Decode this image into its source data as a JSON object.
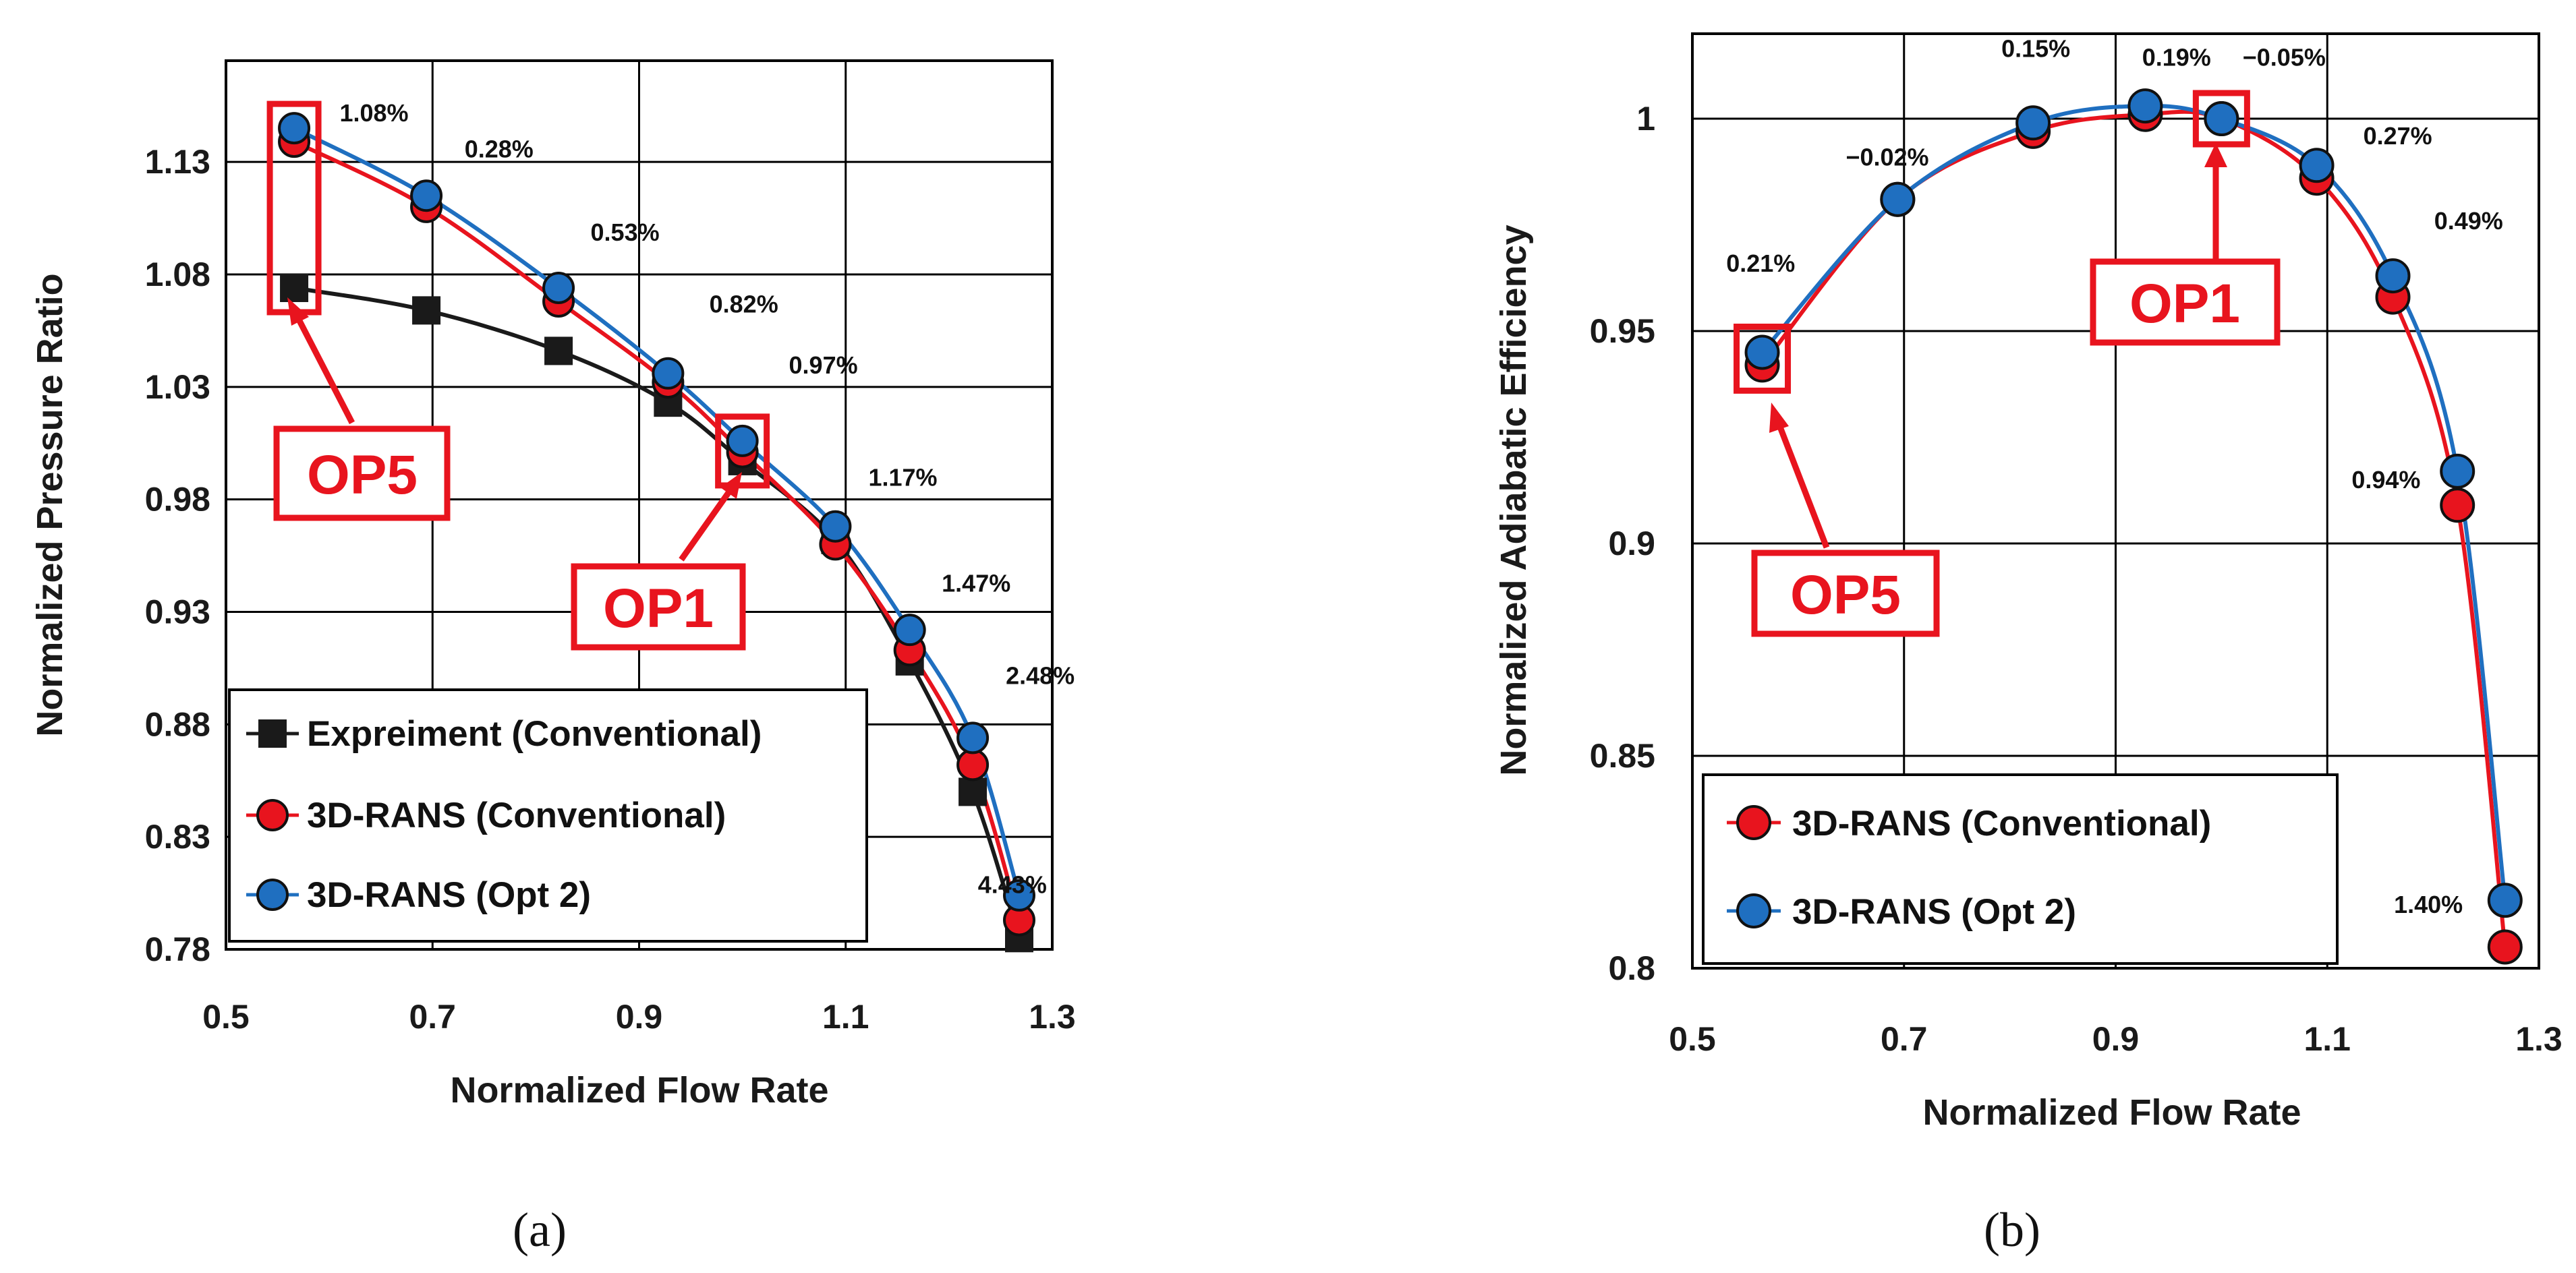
{
  "colors": {
    "experiment": "#1a1a1a",
    "rans_conventional": "#e8141e",
    "rans_opt2": "#1f6fc0",
    "highlight": "#e8141e",
    "grid": "#000000"
  },
  "chart_data": [
    {
      "type": "line",
      "panel_label": "(a)",
      "xlabel": "Normalized Flow Rate",
      "ylabel": "Normalized Pressure Ratio",
      "xlim": [
        0.5,
        1.3
      ],
      "ylim": [
        0.78,
        1.175
      ],
      "xticks": [
        0.5,
        0.7,
        0.9,
        1.1,
        1.3
      ],
      "xtick_labels": [
        "0.5",
        "0.7",
        "0.9",
        "1.1",
        "1.3"
      ],
      "yticks": [
        0.78,
        0.83,
        0.88,
        0.93,
        0.98,
        1.03,
        1.08,
        1.13
      ],
      "ytick_labels": [
        "0.78",
        "0.83",
        "0.88",
        "0.93",
        "0.98",
        "1.03",
        "1.08",
        "1.13"
      ],
      "grid": true,
      "legend_position": "bottom-left",
      "series": [
        {
          "key": "experiment",
          "name": "Expreiment (Conventional)",
          "marker": "square",
          "x": [
            0.566,
            0.694,
            0.822,
            0.928,
            1.0,
            1.09,
            1.162,
            1.223,
            1.268
          ],
          "y": [
            1.074,
            1.064,
            1.046,
            1.023,
            0.997,
            0.962,
            0.908,
            0.85,
            0.785
          ]
        },
        {
          "key": "rans_conventional",
          "name": "3D-RANS (Conventional)",
          "marker": "circle",
          "x": [
            0.566,
            0.694,
            0.822,
            0.928,
            1.0,
            1.09,
            1.162,
            1.223,
            1.268
          ],
          "y": [
            1.139,
            1.11,
            1.068,
            1.032,
            1.001,
            0.96,
            0.913,
            0.862,
            0.793
          ]
        },
        {
          "key": "rans_opt2",
          "name": "3D-RANS (Opt 2)",
          "marker": "circle",
          "x": [
            0.566,
            0.694,
            0.822,
            0.928,
            1.0,
            1.09,
            1.162,
            1.223,
            1.268
          ],
          "y": [
            1.145,
            1.115,
            1.074,
            1.036,
            1.006,
            0.968,
            0.922,
            0.874,
            0.804
          ]
        }
      ],
      "annotations": [
        {
          "text": "1.08%",
          "x": 0.61,
          "y": 1.148
        },
        {
          "text": "0.28%",
          "x": 0.731,
          "y": 1.132
        },
        {
          "text": "0.53%",
          "x": 0.853,
          "y": 1.095
        },
        {
          "text": "0.82%",
          "x": 0.968,
          "y": 1.063
        },
        {
          "text": "0.97%",
          "x": 1.045,
          "y": 1.036
        },
        {
          "text": "1.17%",
          "x": 1.122,
          "y": 0.986
        },
        {
          "text": "1.47%",
          "x": 1.193,
          "y": 0.939
        },
        {
          "text": "2.48%",
          "x": 1.255,
          "y": 0.898
        },
        {
          "text": "4.43%",
          "x": 1.228,
          "y": 0.805
        }
      ],
      "op_boxes": [
        {
          "label": "OP5",
          "x": 0.566
        },
        {
          "label": "OP1",
          "x": 1.0
        }
      ]
    },
    {
      "type": "line",
      "panel_label": "(b)",
      "xlabel": "Normalized Flow Rate",
      "ylabel": "Normalized Adiabatic Efficiency",
      "xlim": [
        0.5,
        1.3
      ],
      "ylim": [
        0.8,
        1.02
      ],
      "xticks": [
        0.5,
        0.7,
        0.9,
        1.1,
        1.3
      ],
      "xtick_labels": [
        "0.5",
        "0.7",
        "0.9",
        "1.1",
        "1.3"
      ],
      "yticks": [
        0.8,
        0.85,
        0.9,
        0.95,
        1.0
      ],
      "ytick_labels": [
        "0.8",
        "0.85",
        "0.9",
        "0.95",
        "1"
      ],
      "grid": true,
      "legend_position": "bottom-left",
      "series": [
        {
          "key": "rans_conventional",
          "name": "3D-RANS (Conventional)",
          "marker": "circle",
          "x": [
            0.566,
            0.694,
            0.822,
            0.928,
            1.0,
            1.09,
            1.162,
            1.223,
            1.268
          ],
          "y": [
            0.942,
            0.981,
            0.997,
            1.001,
            1.0,
            0.986,
            0.958,
            0.909,
            0.805
          ]
        },
        {
          "key": "rans_opt2",
          "name": "3D-RANS (Opt 2)",
          "marker": "circle",
          "x": [
            0.566,
            0.694,
            0.822,
            0.928,
            1.0,
            1.09,
            1.162,
            1.223,
            1.268
          ],
          "y": [
            0.945,
            0.981,
            0.999,
            1.003,
            1.0,
            0.989,
            0.963,
            0.917,
            0.816
          ]
        }
      ],
      "annotations": [
        {
          "text": "0.21%",
          "x": 0.532,
          "y": 0.964
        },
        {
          "text": "−0.02%",
          "x": 0.645,
          "y": 0.989
        },
        {
          "text": "0.15%",
          "x": 0.792,
          "y": 1.0145
        },
        {
          "text": "0.19%",
          "x": 0.925,
          "y": 1.0125
        },
        {
          "text": "−0.05%",
          "x": 1.02,
          "y": 1.0125
        },
        {
          "text": "0.27%",
          "x": 1.134,
          "y": 0.994
        },
        {
          "text": "0.49%",
          "x": 1.201,
          "y": 0.974
        },
        {
          "text": "0.94%",
          "x": 1.123,
          "y": 0.913
        },
        {
          "text": "1.40%",
          "x": 1.163,
          "y": 0.813
        }
      ],
      "op_boxes": [
        {
          "label": "OP5",
          "x": 0.566
        },
        {
          "label": "OP1",
          "x": 1.0
        }
      ]
    }
  ]
}
